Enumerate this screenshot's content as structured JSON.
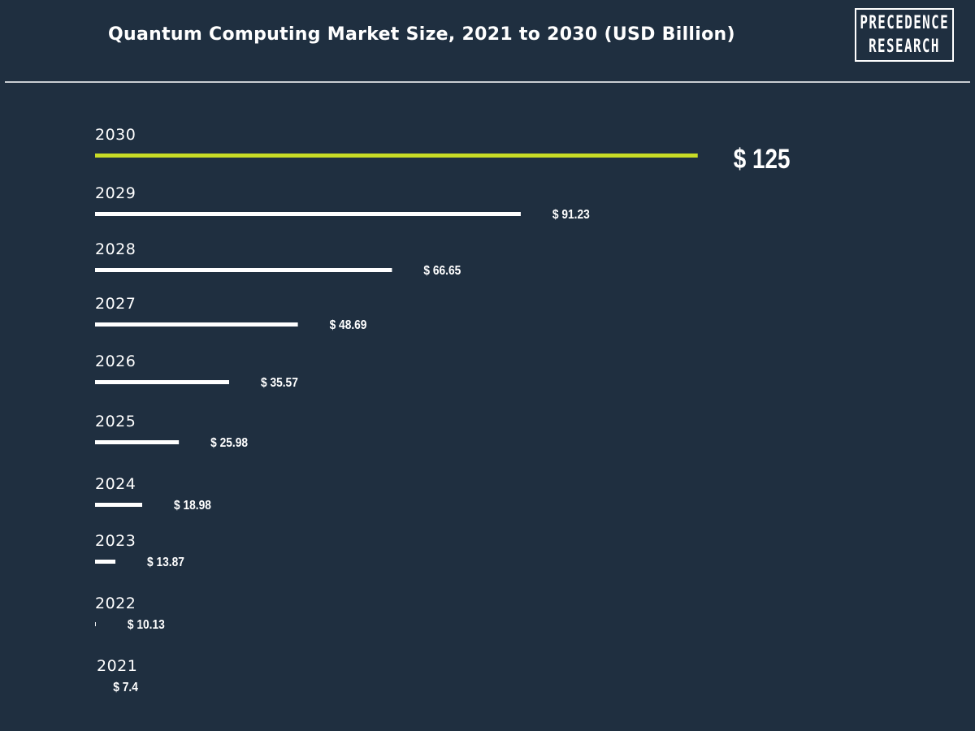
{
  "page": {
    "title": "Quantum Computing Market Size, 2021 to 2030 (USD Billion)",
    "logo_lines": [
      "PRECEDENCE",
      "RESEARCH"
    ]
  },
  "colors": {
    "background": "#1f2f40",
    "bar_default": "#ffffff",
    "bar_highlight": "#c8dc26",
    "text": "#ffffff"
  },
  "chart_data": {
    "type": "bar",
    "orientation": "horizontal",
    "title": "Quantum Computing Market Size, 2021 to 2030 (USD Billion)",
    "categories": [
      "2030",
      "2029",
      "2028",
      "2027",
      "2026",
      "2025",
      "2024",
      "2023",
      "2022",
      "2021"
    ],
    "values": [
      125,
      91.23,
      66.65,
      48.69,
      35.57,
      25.98,
      18.98,
      13.87,
      10.13,
      7.4
    ],
    "value_labels": [
      "$ 125",
      "$ 91.23",
      "$ 66.65",
      "$ 48.69",
      "$ 35.57",
      "$ 25.98",
      "$ 18.98",
      "$ 13.87",
      "$ 10.13",
      "$ 7.4"
    ],
    "highlight_category": "2030",
    "xlabel": "",
    "ylabel": "",
    "grid": false,
    "legend": "none"
  }
}
